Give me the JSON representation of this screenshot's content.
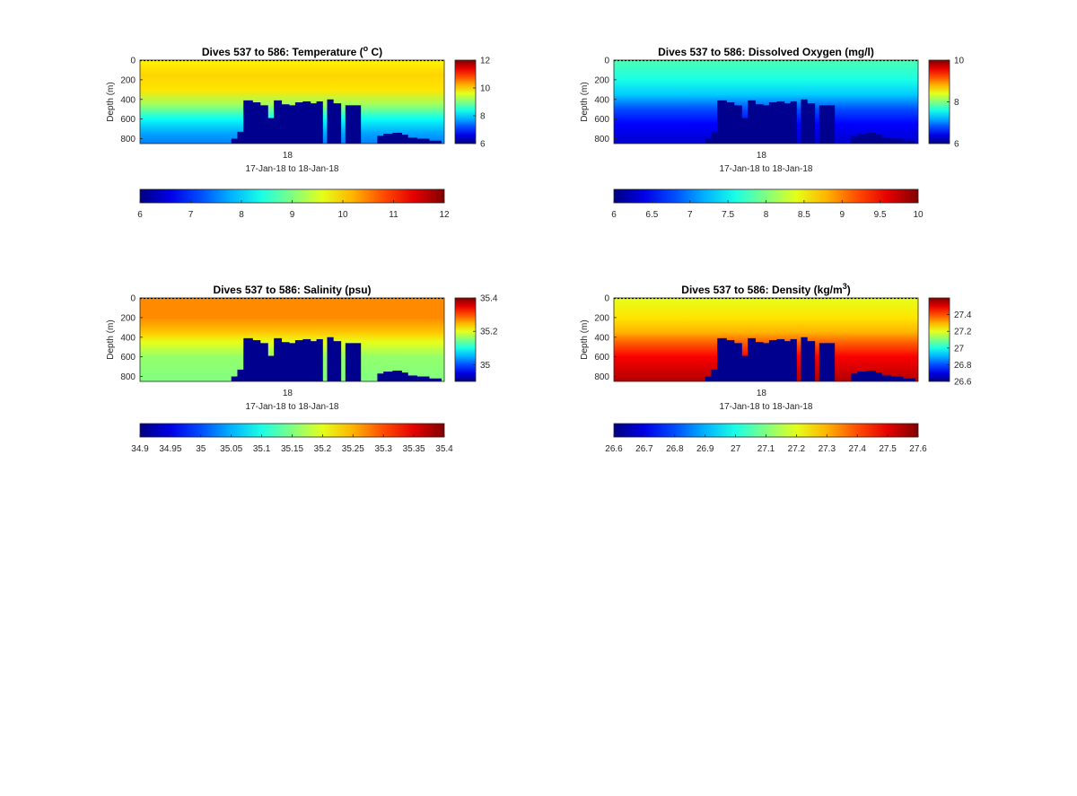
{
  "colors": {
    "mask": "#00008f",
    "axis": "#262626"
  },
  "chart_data": [
    {
      "type": "heatmap",
      "id": "temperature",
      "title": "Dives 537 to 586: Temperature (",
      "title_sup": "o",
      "title_tail": " C)",
      "ylabel": "Depth (m)",
      "xtick_labels": [
        "18"
      ],
      "xlabel": "17-Jan-18 to 18-Jan-18",
      "ylim": [
        850,
        0
      ],
      "yticks": [
        0,
        200,
        400,
        600,
        800
      ],
      "clim": [
        6,
        12
      ],
      "side_colorbar_ticks": [
        6,
        8,
        10,
        12
      ],
      "bottom_colorbar_ticks": [
        6,
        7,
        8,
        9,
        10,
        11,
        12
      ],
      "layers": [
        {
          "depth": 0,
          "value": 9.8
        },
        {
          "depth": 150,
          "value": 10.0
        },
        {
          "depth": 300,
          "value": 9.9
        },
        {
          "depth": 450,
          "value": 9.2
        },
        {
          "depth": 600,
          "value": 8.3
        },
        {
          "depth": 750,
          "value": 7.7
        },
        {
          "depth": 850,
          "value": 7.5
        }
      ]
    },
    {
      "type": "heatmap",
      "id": "oxygen",
      "title": "Dives 537 to 586: Dissolved Oxygen (mg/l)",
      "ylabel": "Depth (m)",
      "xtick_labels": [
        "18"
      ],
      "xlabel": "17-Jan-18 to 18-Jan-18",
      "ylim": [
        850,
        0
      ],
      "yticks": [
        0,
        200,
        400,
        600,
        800
      ],
      "clim": [
        6,
        10
      ],
      "side_colorbar_ticks": [
        6,
        8,
        10
      ],
      "bottom_colorbar_ticks": [
        6,
        6.5,
        7,
        7.5,
        8,
        8.5,
        9,
        9.5,
        10
      ],
      "layers": [
        {
          "depth": 0,
          "value": 7.8
        },
        {
          "depth": 200,
          "value": 7.6
        },
        {
          "depth": 350,
          "value": 7.3
        },
        {
          "depth": 500,
          "value": 6.8
        },
        {
          "depth": 650,
          "value": 6.5
        },
        {
          "depth": 850,
          "value": 6.3
        }
      ]
    },
    {
      "type": "heatmap",
      "id": "salinity",
      "title": "Dives 537 to 586: Salinity (psu)",
      "ylabel": "Depth (m)",
      "xtick_labels": [
        "18"
      ],
      "xlabel": "17-Jan-18 to 18-Jan-18",
      "ylim": [
        850,
        0
      ],
      "yticks": [
        0,
        200,
        400,
        600,
        800
      ],
      "clim": [
        34.9,
        35.4
      ],
      "side_colorbar_ticks": [
        35,
        35.2,
        35.4
      ],
      "bottom_colorbar_ticks": [
        34.9,
        34.95,
        35,
        35.05,
        35.1,
        35.15,
        35.2,
        35.25,
        35.3,
        35.35,
        35.4
      ],
      "layers": [
        {
          "depth": 0,
          "value": 35.27
        },
        {
          "depth": 200,
          "value": 35.27
        },
        {
          "depth": 350,
          "value": 35.24
        },
        {
          "depth": 450,
          "value": 35.2
        },
        {
          "depth": 600,
          "value": 35.16
        },
        {
          "depth": 850,
          "value": 35.15
        }
      ]
    },
    {
      "type": "heatmap",
      "id": "density",
      "title": "Dives 537 to 586: Density (kg/m",
      "title_sup": "3",
      "title_tail": ")",
      "ylabel": "Depth (m)",
      "xtick_labels": [
        "18"
      ],
      "xlabel": "17-Jan-18 to 18-Jan-18",
      "ylim": [
        850,
        0
      ],
      "yticks": [
        0,
        200,
        400,
        600,
        800
      ],
      "clim": [
        26.6,
        27.6
      ],
      "side_colorbar_ticks": [
        26.6,
        26.8,
        27,
        27.2,
        27.4
      ],
      "bottom_colorbar_ticks": [
        26.6,
        26.7,
        26.8,
        26.9,
        27,
        27.1,
        27.2,
        27.3,
        27.4,
        27.5,
        27.6
      ],
      "layers": [
        {
          "depth": 0,
          "value": 27.2
        },
        {
          "depth": 200,
          "value": 27.25
        },
        {
          "depth": 350,
          "value": 27.3
        },
        {
          "depth": 450,
          "value": 27.38
        },
        {
          "depth": 600,
          "value": 27.48
        },
        {
          "depth": 850,
          "value": 27.55
        }
      ]
    }
  ],
  "mask_profile": [
    {
      "from": 0.0,
      "to": 0.3,
      "depth": 850
    },
    {
      "from": 0.3,
      "to": 0.32,
      "depth": 800
    },
    {
      "from": 0.32,
      "to": 0.34,
      "depth": 730
    },
    {
      "from": 0.34,
      "to": 0.37,
      "depth": 410
    },
    {
      "from": 0.37,
      "to": 0.395,
      "depth": 430
    },
    {
      "from": 0.395,
      "to": 0.42,
      "depth": 460
    },
    {
      "from": 0.42,
      "to": 0.44,
      "depth": 590
    },
    {
      "from": 0.44,
      "to": 0.465,
      "depth": 410
    },
    {
      "from": 0.465,
      "to": 0.49,
      "depth": 450
    },
    {
      "from": 0.49,
      "to": 0.51,
      "depth": 460
    },
    {
      "from": 0.51,
      "to": 0.535,
      "depth": 430
    },
    {
      "from": 0.535,
      "to": 0.56,
      "depth": 420
    },
    {
      "from": 0.56,
      "to": 0.58,
      "depth": 440
    },
    {
      "from": 0.58,
      "to": 0.6,
      "depth": 420
    },
    {
      "from": 0.6,
      "to": 0.615,
      "depth": 850
    },
    {
      "from": 0.615,
      "to": 0.635,
      "depth": 400
    },
    {
      "from": 0.635,
      "to": 0.66,
      "depth": 440
    },
    {
      "from": 0.66,
      "to": 0.675,
      "depth": 850
    },
    {
      "from": 0.675,
      "to": 0.7,
      "depth": 460
    },
    {
      "from": 0.7,
      "to": 0.725,
      "depth": 460
    },
    {
      "from": 0.725,
      "to": 0.78,
      "depth": 850
    },
    {
      "from": 0.78,
      "to": 0.8,
      "depth": 770
    },
    {
      "from": 0.8,
      "to": 0.83,
      "depth": 750
    },
    {
      "from": 0.83,
      "to": 0.86,
      "depth": 740
    },
    {
      "from": 0.86,
      "to": 0.88,
      "depth": 760
    },
    {
      "from": 0.88,
      "to": 0.91,
      "depth": 790
    },
    {
      "from": 0.91,
      "to": 0.95,
      "depth": 800
    },
    {
      "from": 0.95,
      "to": 0.99,
      "depth": 820
    },
    {
      "from": 0.99,
      "to": 1.0,
      "depth": 850
    }
  ]
}
